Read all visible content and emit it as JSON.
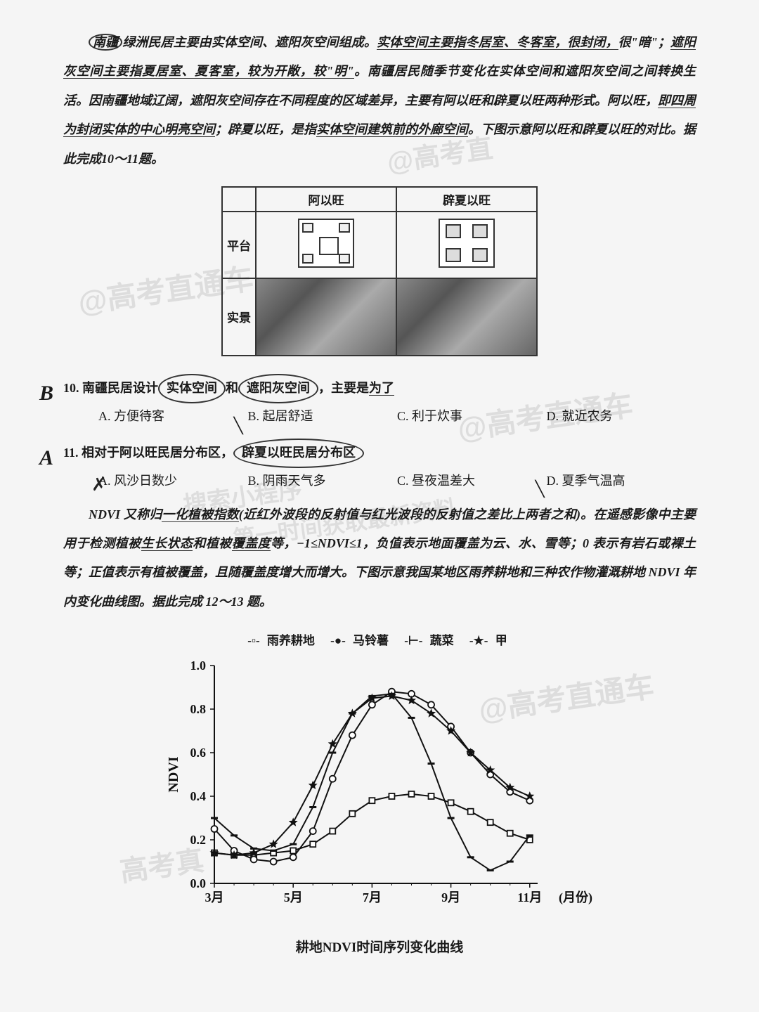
{
  "passage1": {
    "lead_circled": "南疆",
    "text1": "绿洲民居主要由实体空间、遮阳灰空间组成。",
    "text2_u": "实体空间主要指冬居室、冬客室，很封闭，",
    "text3": "很\"暗\"；",
    "text3_u": "遮阳灰空间主要指夏居室、夏客室，较为开敞，较\"明\"",
    "text4": "。南疆居民随季节变化在实体空间和遮阳灰空间之间转换生活。因南疆地域辽阔，遮阳灰空间存在不同程度的区域差异，主要有阿以旺和辟夏以旺两种形式。阿以旺，",
    "text4_u": "即四周为封闭实体的中心明亮空间",
    "text5": "；辟夏以旺，是指",
    "text5_u": "实体空间建筑前的外廊空间",
    "text6": "。下图示意阿以旺和辟夏以旺的对比。据此完成10～11题。"
  },
  "table": {
    "col1": "阿以旺",
    "col2": "辟夏以旺",
    "row1": "平台",
    "row2": "实景"
  },
  "q10": {
    "num": "10.",
    "hand": "B",
    "stem": "南疆民居设计",
    "circ1": "实体空间",
    "mid": "和",
    "circ2": "遮阳灰空间",
    "tail": "，主要是",
    "tail_u": "为了",
    "optA": "A. 方便待客",
    "optB": "B. 起居舒适",
    "optC": "C. 利于炊事",
    "optD": "D. 就近农务"
  },
  "q11": {
    "num": "11.",
    "hand": "A",
    "stem": "相对于阿以旺民居分布区，",
    "circ": "辟夏以旺民居分布区",
    "optA": "A. 风沙日数少",
    "optB": "B. 阴雨天气多",
    "optC": "C. 昼夜温差大",
    "optD": "D. 夏季气温高"
  },
  "passage2": {
    "t1": "NDVI 又称归",
    "t1_u": "一化植被指数",
    "t2": "(近红外波段的反射值与红光波段的反射值之差比上两者之和)。在遥感影像中主要用于检测植被",
    "t2_u1": "生长状态",
    "t3": "和植被",
    "t2_u2": "覆盖度",
    "t4": "等，−1≤NDVI≤1，负值表示地面覆盖为云、水、雪等；0 表示有岩石或裸土等；正值表示有植被覆盖，且随覆盖度增大而增大。下图示意我国某地区雨养耕地和三种农作物灌溉耕地 NDVI 年内变化曲线图。据此完成 12～13 题。"
  },
  "chart": {
    "legend": {
      "s1": "雨养耕地",
      "s2": "马铃薯",
      "s3": "蔬菜",
      "s4": "甲"
    },
    "ylabel": "NDVI",
    "xlabel": "(月份)",
    "caption": "耕地NDVI时间序列变化曲线",
    "ylim": [
      0.0,
      1.0
    ],
    "ytick_step": 0.2,
    "xticks": [
      "3月",
      "5月",
      "7月",
      "9月",
      "11月"
    ],
    "xtick_positions": [
      3,
      5,
      7,
      9,
      11
    ],
    "background_color": "#f5f5f5",
    "line_color": "#111111",
    "series": {
      "rainfed": {
        "marker": "square",
        "x": [
          3,
          3.5,
          4,
          4.5,
          5,
          5.5,
          6,
          6.5,
          7,
          7.5,
          8,
          8.5,
          9,
          9.5,
          10,
          10.5,
          11
        ],
        "y": [
          0.14,
          0.13,
          0.13,
          0.14,
          0.15,
          0.18,
          0.24,
          0.32,
          0.38,
          0.4,
          0.41,
          0.4,
          0.37,
          0.33,
          0.28,
          0.23,
          0.2
        ]
      },
      "potato": {
        "marker": "circle",
        "x": [
          3,
          3.5,
          4,
          4.5,
          5,
          5.5,
          6,
          6.5,
          7,
          7.5,
          8,
          8.5,
          9,
          9.5,
          10,
          10.5,
          11
        ],
        "y": [
          0.25,
          0.15,
          0.11,
          0.1,
          0.12,
          0.24,
          0.48,
          0.68,
          0.82,
          0.88,
          0.87,
          0.82,
          0.72,
          0.6,
          0.5,
          0.42,
          0.38
        ]
      },
      "vegetable": {
        "marker": "dash",
        "x": [
          3,
          3.5,
          4,
          4.5,
          5,
          5.5,
          6,
          6.5,
          7,
          7.5,
          8,
          8.5,
          9,
          9.5,
          10,
          10.5,
          11
        ],
        "y": [
          0.3,
          0.22,
          0.16,
          0.15,
          0.18,
          0.35,
          0.6,
          0.78,
          0.86,
          0.87,
          0.76,
          0.55,
          0.3,
          0.12,
          0.06,
          0.1,
          0.22
        ]
      },
      "crop_a": {
        "marker": "star",
        "x": [
          3,
          3.5,
          4,
          4.5,
          5,
          5.5,
          6,
          6.5,
          7,
          7.5,
          8,
          8.5,
          9,
          9.5,
          10,
          10.5,
          11
        ],
        "y": [
          0.14,
          0.13,
          0.14,
          0.18,
          0.28,
          0.45,
          0.64,
          0.78,
          0.85,
          0.86,
          0.84,
          0.78,
          0.7,
          0.6,
          0.52,
          0.44,
          0.4
        ]
      }
    }
  },
  "watermarks": [
    "@高考直通车",
    "@高考直",
    "@高考直通车",
    "@高考直通车",
    "搜索小程序",
    "第一时间获取最新资料",
    "高考真"
  ]
}
